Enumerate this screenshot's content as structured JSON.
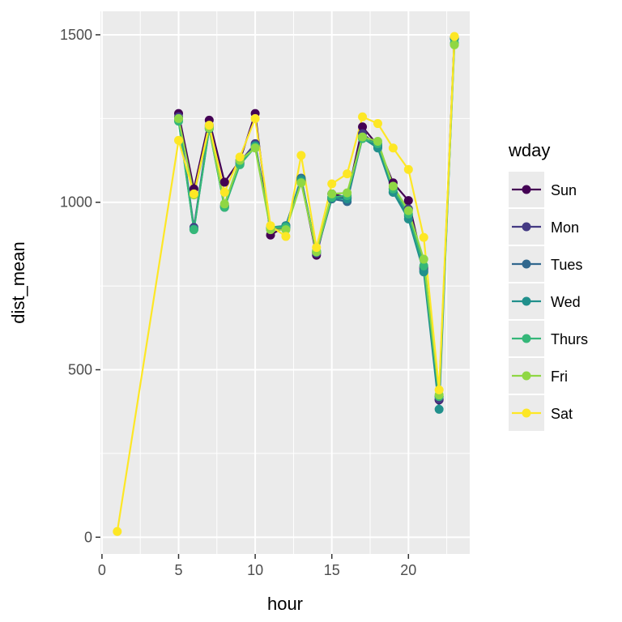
{
  "chart_data": {
    "type": "line",
    "xlabel": "hour",
    "ylabel": "dist_mean",
    "xlim": [
      -0.1,
      24.0
    ],
    "ylim": [
      -50,
      1570
    ],
    "x_ticks": [
      0,
      5,
      10,
      15,
      20
    ],
    "y_ticks": [
      0,
      500,
      1000,
      1500
    ],
    "grid": true,
    "legend": {
      "title": "wday",
      "position": "right"
    },
    "series": [
      {
        "name": "Sun",
        "color": "#440154",
        "x": [
          5,
          6,
          7,
          8,
          9,
          10,
          11,
          12,
          13,
          14,
          15,
          16,
          17,
          18,
          19,
          20,
          21,
          22,
          23
        ],
        "y": [
          1265,
          1040,
          1245,
          1060,
          1125,
          1265,
          902,
          930,
          1065,
          842,
          1025,
          1015,
          1225,
          1170,
          1058,
          1005,
          805,
          410,
          1492
        ]
      },
      {
        "name": "Mon",
        "color": "#443A83",
        "x": [
          5,
          6,
          7,
          8,
          9,
          10,
          11,
          12,
          13,
          14,
          15,
          16,
          17,
          18,
          19,
          20,
          21,
          22,
          23
        ],
        "y": [
          1255,
          925,
          1230,
          990,
          1120,
          1175,
          920,
          925,
          1070,
          848,
          1015,
          1012,
          1205,
          1170,
          1040,
          980,
          800,
          412,
          1490
        ]
      },
      {
        "name": "Tues",
        "color": "#31688E",
        "x": [
          5,
          6,
          7,
          8,
          9,
          10,
          11,
          12,
          13,
          14,
          15,
          16,
          17,
          18,
          19,
          20,
          21,
          22,
          23
        ],
        "y": [
          1250,
          920,
          1225,
          985,
          1115,
          1170,
          922,
          928,
          1072,
          850,
          1010,
          1002,
          1195,
          1165,
          1030,
          960,
          795,
          420,
          1490
        ]
      },
      {
        "name": "Wed",
        "color": "#21908C",
        "x": [
          5,
          6,
          7,
          8,
          9,
          10,
          11,
          12,
          13,
          14,
          15,
          16,
          17,
          18,
          19,
          20,
          21,
          22,
          23
        ],
        "y": [
          1245,
          920,
          1220,
          988,
          1115,
          1168,
          925,
          930,
          1068,
          852,
          1012,
          1010,
          1192,
          1162,
          1030,
          950,
          792,
          382,
          1488
        ]
      },
      {
        "name": "Thurs",
        "color": "#35B779",
        "x": [
          5,
          6,
          7,
          8,
          9,
          10,
          11,
          12,
          13,
          14,
          15,
          16,
          17,
          18,
          19,
          20,
          21,
          22,
          23
        ],
        "y": [
          1242,
          918,
          1220,
          985,
          1112,
          1165,
          925,
          925,
          1060,
          855,
          1015,
          1020,
          1190,
          1175,
          1040,
          965,
          810,
          420,
          1475
        ]
      },
      {
        "name": "Fri",
        "color": "#8FD744",
        "x": [
          5,
          6,
          7,
          8,
          9,
          10,
          11,
          12,
          13,
          14,
          15,
          16,
          17,
          18,
          19,
          20,
          21,
          22,
          23
        ],
        "y": [
          1250,
          1022,
          1222,
          995,
          1125,
          1162,
          918,
          918,
          1058,
          852,
          1025,
          1028,
          1195,
          1182,
          1048,
          975,
          830,
          425,
          1470
        ]
      },
      {
        "name": "Sat",
        "color": "#FDE725",
        "x": [
          1,
          5,
          6,
          7,
          8,
          9,
          10,
          11,
          12,
          13,
          14,
          15,
          16,
          17,
          18,
          19,
          20,
          21,
          22,
          23
        ],
        "y": [
          17,
          1185,
          1025,
          1230,
          1030,
          1135,
          1250,
          930,
          898,
          1140,
          865,
          1055,
          1085,
          1255,
          1235,
          1162,
          1098,
          895,
          440,
          1495
        ]
      }
    ]
  }
}
